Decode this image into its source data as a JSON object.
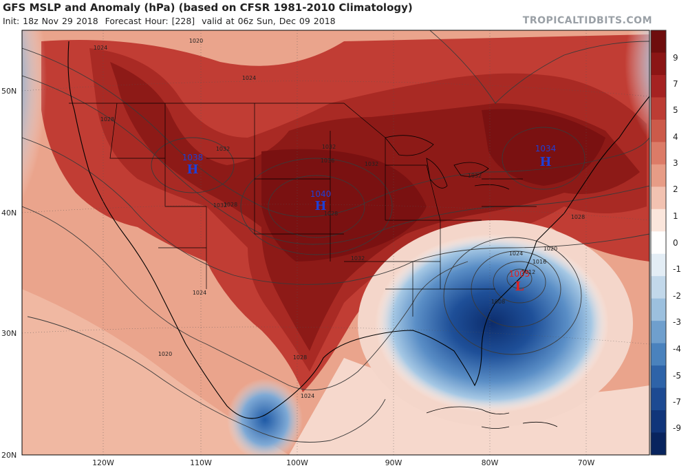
{
  "header": {
    "title": "GFS MSLP and Anomaly (hPa) (based on CFSR 1981-2010 Climatology)",
    "init": "Init: 18z Nov 29 2018",
    "forecast_hour": "Forecast Hour: [228]",
    "valid": "valid at 06z Sun, Dec 09 2018",
    "brand": "TROPICALTIDBITS.COM"
  },
  "axes": {
    "lat_labels": [
      "50N",
      "40N",
      "30N",
      "20N"
    ],
    "lon_labels": [
      "120W",
      "110W",
      "100W",
      "90W",
      "80W",
      "70W"
    ]
  },
  "pressure_centers": [
    {
      "type": "H",
      "value": "1038",
      "color": "#1f3fd6"
    },
    {
      "type": "H",
      "value": "1040",
      "color": "#1f3fd6"
    },
    {
      "type": "H",
      "value": "1034",
      "color": "#1f3fd6"
    },
    {
      "type": "L",
      "value": "1005",
      "color": "#e01f1f"
    }
  ],
  "isobar_labels": [
    "1024",
    "1020",
    "1024",
    "1028",
    "1032",
    "1032",
    "1036",
    "1032",
    "1028",
    "1028",
    "1032",
    "1032",
    "1024",
    "1020",
    "1016",
    "1012",
    "1008",
    "1024",
    "1020",
    "1028",
    "1024",
    "1028",
    "1032"
  ],
  "colorbar": {
    "labels": [
      "9",
      "7",
      "5",
      "4",
      "3",
      "2",
      "1",
      "0",
      "-1",
      "-2",
      "-3",
      "-4",
      "-5",
      "-7",
      "-9"
    ],
    "colors": [
      "#6e0d0d",
      "#8b1515",
      "#a52222",
      "#bc3c34",
      "#cc5a4a",
      "#dc7b67",
      "#e79c86",
      "#f2c2b1",
      "#fbe6dc",
      "#ffffff",
      "#e3edf5",
      "#c2d8ea",
      "#9cc0de",
      "#6f9fcd",
      "#4a82bd",
      "#2e63a8",
      "#1d4a92",
      "#10357a",
      "#08245e"
    ]
  }
}
